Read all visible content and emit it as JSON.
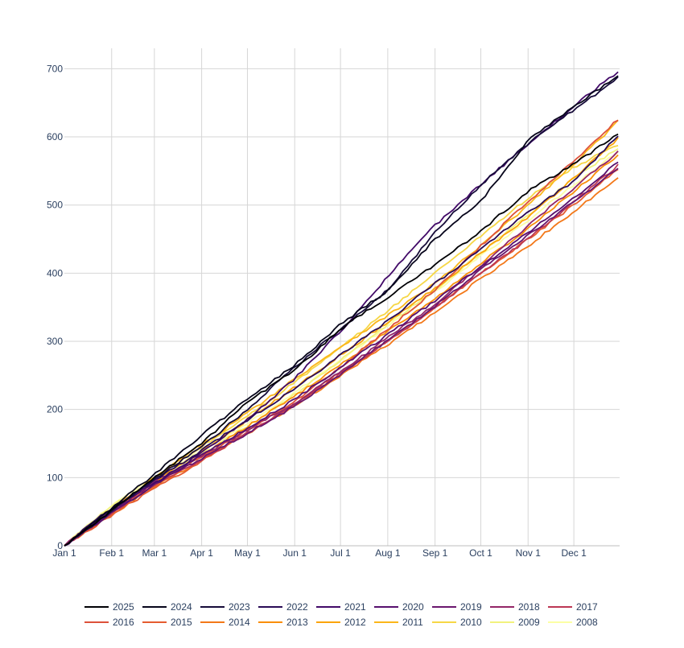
{
  "chart_data": {
    "type": "line",
    "title": "",
    "xlabel": "",
    "ylabel": "",
    "x_ticks": [
      "Jan 1",
      "Feb 1",
      "Mar 1",
      "Apr 1",
      "May 1",
      "Jun 1",
      "Jul 1",
      "Aug 1",
      "Sep 1",
      "Oct 1",
      "Nov 1",
      "Dec 1"
    ],
    "x_tick_days": [
      0,
      31,
      59,
      90,
      120,
      151,
      181,
      212,
      243,
      273,
      304,
      334
    ],
    "xlim": [
      0,
      364
    ],
    "y_ticks": [
      "0",
      "100",
      "200",
      "300",
      "400",
      "500",
      "600",
      "700"
    ],
    "y_tick_values": [
      0,
      100,
      200,
      300,
      400,
      500,
      600,
      700
    ],
    "ylim": [
      0,
      730
    ],
    "grid": true,
    "legend_position": "bottom",
    "series": [
      {
        "name": "2025",
        "color": "#000004",
        "values": [
          [
            0,
            0
          ],
          [
            31,
            52
          ],
          [
            59,
            100
          ],
          [
            90,
            150
          ],
          [
            120,
            210
          ],
          [
            151,
            258
          ],
          [
            181,
            318
          ],
          [
            212,
            365
          ],
          [
            243,
            412
          ],
          [
            273,
            462
          ],
          [
            304,
            520
          ],
          [
            334,
            560
          ],
          [
            364,
            605
          ]
        ]
      },
      {
        "name": "2024",
        "color": "#07051b",
        "values": [
          [
            0,
            0
          ],
          [
            31,
            55
          ],
          [
            59,
            105
          ],
          [
            90,
            162
          ],
          [
            120,
            215
          ],
          [
            151,
            265
          ],
          [
            181,
            325
          ],
          [
            212,
            375
          ],
          [
            243,
            450
          ],
          [
            273,
            505
          ],
          [
            304,
            595
          ],
          [
            334,
            645
          ],
          [
            364,
            690
          ]
        ]
      },
      {
        "name": "2023",
        "color": "#160b39",
        "values": [
          [
            0,
            0
          ],
          [
            31,
            50
          ],
          [
            59,
            98
          ],
          [
            90,
            145
          ],
          [
            120,
            200
          ],
          [
            151,
            262
          ],
          [
            181,
            318
          ],
          [
            212,
            375
          ],
          [
            243,
            460
          ],
          [
            273,
            530
          ],
          [
            304,
            590
          ],
          [
            334,
            640
          ],
          [
            364,
            688
          ]
        ]
      },
      {
        "name": "2022",
        "color": "#2a0b56",
        "values": [
          [
            0,
            0
          ],
          [
            31,
            56
          ],
          [
            59,
            96
          ],
          [
            90,
            140
          ],
          [
            120,
            185
          ],
          [
            151,
            230
          ],
          [
            181,
            280
          ],
          [
            212,
            330
          ],
          [
            243,
            385
          ],
          [
            273,
            435
          ],
          [
            304,
            490
          ],
          [
            334,
            535
          ],
          [
            364,
            605
          ]
        ]
      },
      {
        "name": "2021",
        "color": "#420a68",
        "values": [
          [
            0,
            0
          ],
          [
            31,
            54
          ],
          [
            59,
            92
          ],
          [
            90,
            136
          ],
          [
            120,
            185
          ],
          [
            151,
            245
          ],
          [
            181,
            315
          ],
          [
            212,
            395
          ],
          [
            243,
            470
          ],
          [
            273,
            530
          ],
          [
            304,
            590
          ],
          [
            334,
            645
          ],
          [
            364,
            698
          ]
        ]
      },
      {
        "name": "2020",
        "color": "#57106e",
        "values": [
          [
            0,
            0
          ],
          [
            31,
            48
          ],
          [
            59,
            90
          ],
          [
            90,
            132
          ],
          [
            120,
            172
          ],
          [
            151,
            215
          ],
          [
            181,
            262
          ],
          [
            212,
            310
          ],
          [
            243,
            360
          ],
          [
            273,
            410
          ],
          [
            304,
            460
          ],
          [
            334,
            510
          ],
          [
            364,
            565
          ]
        ]
      },
      {
        "name": "2019",
        "color": "#6a176e",
        "values": [
          [
            0,
            0
          ],
          [
            31,
            50
          ],
          [
            59,
            92
          ],
          [
            90,
            128
          ],
          [
            120,
            165
          ],
          [
            151,
            205
          ],
          [
            181,
            252
          ],
          [
            212,
            302
          ],
          [
            243,
            352
          ],
          [
            273,
            405
          ],
          [
            304,
            455
          ],
          [
            334,
            505
          ],
          [
            364,
            555
          ]
        ]
      },
      {
        "name": "2018",
        "color": "#932667",
        "values": [
          [
            0,
            0
          ],
          [
            31,
            52
          ],
          [
            59,
            94
          ],
          [
            90,
            132
          ],
          [
            120,
            170
          ],
          [
            151,
            210
          ],
          [
            181,
            255
          ],
          [
            212,
            305
          ],
          [
            243,
            355
          ],
          [
            273,
            410
          ],
          [
            304,
            470
          ],
          [
            334,
            525
          ],
          [
            364,
            580
          ]
        ]
      },
      {
        "name": "2017",
        "color": "#bc3754",
        "values": [
          [
            0,
            0
          ],
          [
            31,
            48
          ],
          [
            59,
            88
          ],
          [
            90,
            126
          ],
          [
            120,
            165
          ],
          [
            151,
            208
          ],
          [
            181,
            252
          ],
          [
            212,
            300
          ],
          [
            243,
            350
          ],
          [
            273,
            400
          ],
          [
            304,
            450
          ],
          [
            334,
            505
          ],
          [
            364,
            560
          ]
        ]
      },
      {
        "name": "2016",
        "color": "#dd513a",
        "values": [
          [
            0,
            0
          ],
          [
            31,
            50
          ],
          [
            59,
            90
          ],
          [
            90,
            130
          ],
          [
            120,
            170
          ],
          [
            151,
            212
          ],
          [
            181,
            262
          ],
          [
            212,
            318
          ],
          [
            243,
            375
          ],
          [
            273,
            440
          ],
          [
            304,
            505
          ],
          [
            334,
            565
          ],
          [
            364,
            628
          ]
        ]
      },
      {
        "name": "2015",
        "color": "#e55c30",
        "values": [
          [
            0,
            0
          ],
          [
            31,
            45
          ],
          [
            59,
            84
          ],
          [
            90,
            124
          ],
          [
            120,
            165
          ],
          [
            151,
            208
          ],
          [
            181,
            254
          ],
          [
            212,
            300
          ],
          [
            243,
            350
          ],
          [
            273,
            400
          ],
          [
            304,
            450
          ],
          [
            334,
            500
          ],
          [
            364,
            555
          ]
        ]
      },
      {
        "name": "2014",
        "color": "#f37819",
        "values": [
          [
            0,
            0
          ],
          [
            31,
            46
          ],
          [
            59,
            86
          ],
          [
            90,
            126
          ],
          [
            120,
            165
          ],
          [
            151,
            205
          ],
          [
            181,
            250
          ],
          [
            212,
            295
          ],
          [
            243,
            342
          ],
          [
            273,
            392
          ],
          [
            304,
            440
          ],
          [
            334,
            490
          ],
          [
            364,
            542
          ]
        ]
      },
      {
        "name": "2013",
        "color": "#f98e09",
        "values": [
          [
            0,
            0
          ],
          [
            31,
            52
          ],
          [
            59,
            92
          ],
          [
            90,
            132
          ],
          [
            120,
            175
          ],
          [
            151,
            220
          ],
          [
            181,
            265
          ],
          [
            212,
            315
          ],
          [
            243,
            362
          ],
          [
            273,
            415
          ],
          [
            304,
            465
          ],
          [
            334,
            520
          ],
          [
            364,
            575
          ]
        ]
      },
      {
        "name": "2012",
        "color": "#fba40a",
        "values": [
          [
            0,
            0
          ],
          [
            31,
            50
          ],
          [
            59,
            94
          ],
          [
            90,
            138
          ],
          [
            120,
            185
          ],
          [
            151,
            232
          ],
          [
            181,
            280
          ],
          [
            212,
            328
          ],
          [
            243,
            378
          ],
          [
            273,
            430
          ],
          [
            304,
            482
          ],
          [
            334,
            540
          ],
          [
            364,
            600
          ]
        ]
      },
      {
        "name": "2011",
        "color": "#fbb61a",
        "values": [
          [
            0,
            0
          ],
          [
            31,
            52
          ],
          [
            59,
            100
          ],
          [
            90,
            148
          ],
          [
            120,
            195
          ],
          [
            151,
            245
          ],
          [
            181,
            292
          ],
          [
            212,
            338
          ],
          [
            243,
            385
          ],
          [
            273,
            440
          ],
          [
            304,
            500
          ],
          [
            334,
            560
          ],
          [
            364,
            625
          ]
        ]
      },
      {
        "name": "2010",
        "color": "#f6d746",
        "values": [
          [
            0,
            0
          ],
          [
            31,
            55
          ],
          [
            59,
            98
          ],
          [
            90,
            145
          ],
          [
            120,
            190
          ],
          [
            151,
            240
          ],
          [
            181,
            290
          ],
          [
            212,
            345
          ],
          [
            243,
            400
          ],
          [
            273,
            455
          ],
          [
            304,
            510
          ],
          [
            334,
            555
          ],
          [
            364,
            590
          ]
        ]
      },
      {
        "name": "2009",
        "color": "#f2f27d",
        "values": [
          [
            0,
            0
          ],
          [
            31,
            58
          ],
          [
            59,
            95
          ],
          [
            90,
            135
          ],
          [
            120,
            175
          ],
          [
            151,
            222
          ],
          [
            181,
            272
          ],
          [
            212,
            325
          ],
          [
            243,
            375
          ],
          [
            273,
            430
          ],
          [
            304,
            485
          ],
          [
            334,
            540
          ],
          [
            364,
            585
          ]
        ]
      },
      {
        "name": "2008",
        "color": "#fcffa4",
        "values": [
          [
            0,
            0
          ],
          [
            31,
            60
          ],
          [
            59,
            100
          ],
          [
            90,
            140
          ],
          [
            120,
            180
          ],
          [
            151,
            225
          ],
          [
            181,
            272
          ],
          [
            212,
            322
          ],
          [
            243,
            372
          ],
          [
            273,
            425
          ],
          [
            304,
            478
          ],
          [
            334,
            530
          ],
          [
            364,
            580
          ]
        ]
      }
    ]
  }
}
